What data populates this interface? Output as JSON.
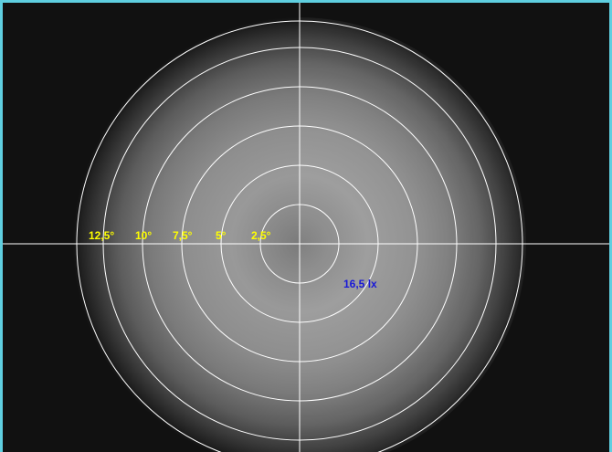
{
  "colors": {
    "background": "#111111",
    "frame_border": "#5fcfe0",
    "grid_lines": "#ffffff",
    "angle_labels": "#ffff00",
    "value_label": "#1818d8"
  },
  "angle_labels": [
    "12,5°",
    "10°",
    "7,5°",
    "5°",
    "2,5°"
  ],
  "measurement": {
    "value_label": "16,5 lx"
  }
}
